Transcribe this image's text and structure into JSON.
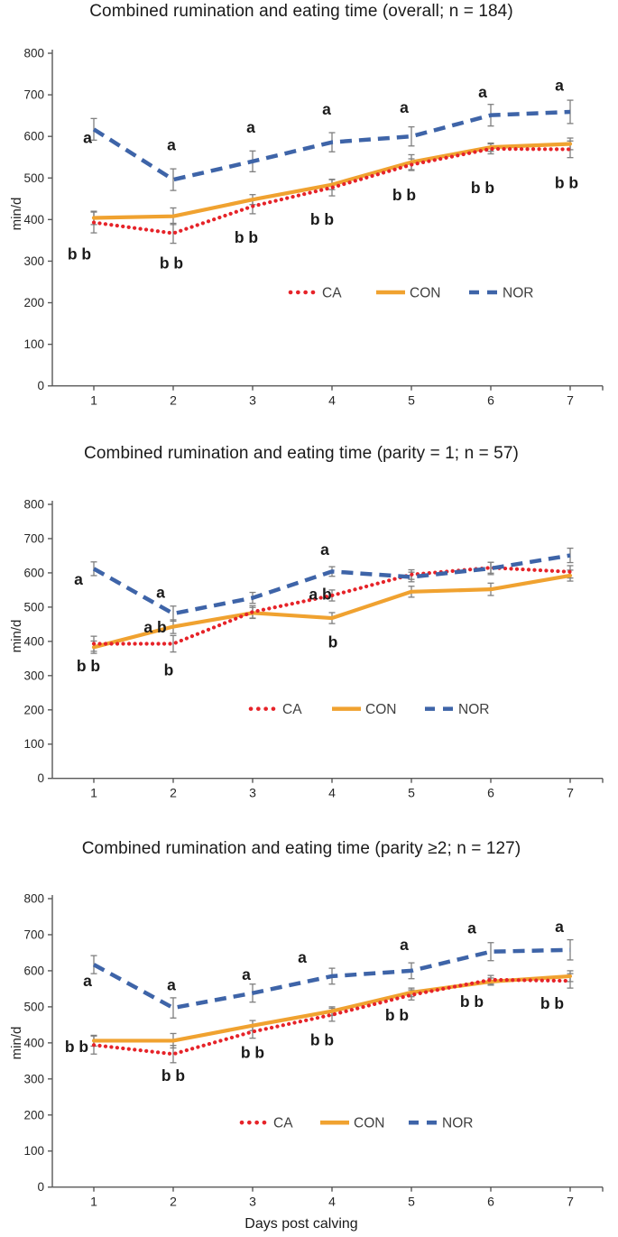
{
  "figure": {
    "xlabel": "Days post calving",
    "ylabel": "min/d",
    "legend_labels": [
      "CA",
      "CON",
      "NOR"
    ],
    "colors": {
      "ca": "#e62329",
      "con": "#f0a230",
      "nor": "#3e64a8",
      "error_bar": "#7f7f7f",
      "axis": "#595959",
      "tick_text": "#262626",
      "letter_text": "#1a1a1a",
      "legend_text": "#404040"
    }
  },
  "chart_data": [
    {
      "type": "line",
      "title": "Combined rumination and eating time (overall; n = 184)",
      "x": [
        1,
        2,
        3,
        4,
        5,
        6,
        7
      ],
      "xlabel": "",
      "ylabel": "min/d",
      "ylim": [
        0,
        800
      ],
      "yticks": [
        0,
        100,
        200,
        300,
        400,
        500,
        600,
        700,
        800
      ],
      "grid": false,
      "legend_position": "inside-center",
      "series": [
        {
          "name": "CA",
          "style": "dotted",
          "color": "#e62329",
          "values": [
            393,
            367,
            432,
            477,
            532,
            570,
            569
          ],
          "err": [
            25,
            24,
            18,
            20,
            14,
            12,
            20
          ]
        },
        {
          "name": "CON",
          "style": "solid",
          "color": "#f0a230",
          "values": [
            404,
            408,
            448,
            484,
            538,
            574,
            582
          ],
          "err": [
            16,
            20,
            12,
            12,
            18,
            10,
            14
          ]
        },
        {
          "name": "NOR",
          "style": "dashed",
          "color": "#3e64a8",
          "values": [
            617,
            496,
            540,
            586,
            600,
            651,
            659
          ],
          "err": [
            26,
            26,
            25,
            23,
            23,
            26,
            28
          ]
        }
      ],
      "annotations": [
        {
          "day": 1,
          "text": "a",
          "dx": -7,
          "value": 597
        },
        {
          "day": 2,
          "text": "a",
          "dx": -2,
          "value": 580
        },
        {
          "day": 3,
          "text": "a",
          "dx": -2,
          "value": 622
        },
        {
          "day": 4,
          "text": "a",
          "dx": -6,
          "value": 666
        },
        {
          "day": 5,
          "text": "a",
          "dx": -8,
          "value": 670
        },
        {
          "day": 6,
          "text": "a",
          "dx": -9,
          "value": 707
        },
        {
          "day": 7,
          "text": "a",
          "dx": -12,
          "value": 723
        },
        {
          "day": 1,
          "text": "b b",
          "dx": -16,
          "value": 317
        },
        {
          "day": 2,
          "text": "b b",
          "dx": -2,
          "value": 295
        },
        {
          "day": 3,
          "text": "b b",
          "dx": -7,
          "value": 357
        },
        {
          "day": 4,
          "text": "b b",
          "dx": -11,
          "value": 401
        },
        {
          "day": 5,
          "text": "b b",
          "dx": -8,
          "value": 459
        },
        {
          "day": 6,
          "text": "b b",
          "dx": -9,
          "value": 477
        },
        {
          "day": 7,
          "text": "b b",
          "dx": -4,
          "value": 489
        }
      ]
    },
    {
      "type": "line",
      "title": "Combined rumination and eating time (parity = 1; n = 57)",
      "x": [
        1,
        2,
        3,
        4,
        5,
        6,
        7
      ],
      "xlabel": "",
      "ylabel": "min/d",
      "ylim": [
        0,
        800
      ],
      "yticks": [
        0,
        100,
        200,
        300,
        400,
        500,
        600,
        700,
        800
      ],
      "grid": false,
      "legend_position": "inside-center",
      "series": [
        {
          "name": "CA",
          "style": "dotted",
          "color": "#e62329",
          "values": [
            393,
            393,
            486,
            534,
            595,
            615,
            603
          ],
          "err": [
            22,
            24,
            18,
            16,
            14,
            16,
            18
          ]
        },
        {
          "name": "CON",
          "style": "solid",
          "color": "#f0a230",
          "values": [
            383,
            443,
            483,
            468,
            545,
            552,
            592
          ],
          "err": [
            18,
            20,
            16,
            16,
            16,
            18,
            16
          ]
        },
        {
          "name": "NOR",
          "style": "dashed",
          "color": "#3e64a8",
          "values": [
            612,
            481,
            527,
            604,
            588,
            613,
            651
          ],
          "err": [
            20,
            22,
            16,
            14,
            14,
            18,
            21
          ]
        }
      ],
      "annotations": [
        {
          "day": 1,
          "text": "a",
          "dx": -17,
          "value": 582
        },
        {
          "day": 1,
          "text": "b b",
          "dx": -6,
          "value": 328
        },
        {
          "day": 2,
          "text": "a",
          "dx": -14,
          "value": 543
        },
        {
          "day": 2,
          "text": "a b",
          "dx": -20,
          "value": 442
        },
        {
          "day": 2,
          "text": "b",
          "dx": -5,
          "value": 316
        },
        {
          "day": 4,
          "text": "a",
          "dx": -8,
          "value": 668
        },
        {
          "day": 4,
          "text": "a b",
          "dx": -13,
          "value": 538
        },
        {
          "day": 4,
          "text": "b",
          "dx": 1,
          "value": 398
        }
      ]
    },
    {
      "type": "line",
      "title": "Combined rumination and eating time (parity ≥2; n = 127)",
      "x": [
        1,
        2,
        3,
        4,
        5,
        6,
        7
      ],
      "xlabel": "Days post calving",
      "ylabel": "min/d",
      "ylim": [
        0,
        800
      ],
      "yticks": [
        0,
        100,
        200,
        300,
        400,
        500,
        600,
        700,
        800
      ],
      "grid": false,
      "legend_position": "inside-center",
      "series": [
        {
          "name": "CA",
          "style": "dotted",
          "color": "#e62329",
          "values": [
            394,
            369,
            431,
            478,
            533,
            575,
            572
          ],
          "err": [
            25,
            24,
            18,
            18,
            14,
            12,
            20
          ]
        },
        {
          "name": "CON",
          "style": "solid",
          "color": "#f0a230",
          "values": [
            406,
            406,
            448,
            488,
            540,
            570,
            585
          ],
          "err": [
            15,
            20,
            14,
            12,
            12,
            10,
            15
          ]
        },
        {
          "name": "NOR",
          "style": "dashed",
          "color": "#3e64a8",
          "values": [
            617,
            497,
            538,
            585,
            600,
            653,
            658
          ],
          "err": [
            25,
            28,
            25,
            22,
            22,
            25,
            28
          ]
        }
      ],
      "annotations": [
        {
          "day": 1,
          "text": "a",
          "dx": -7,
          "value": 572
        },
        {
          "day": 2,
          "text": "a",
          "dx": -2,
          "value": 561
        },
        {
          "day": 3,
          "text": "a",
          "dx": -7,
          "value": 590
        },
        {
          "day": 4,
          "text": "a",
          "dx": -33,
          "value": 637
        },
        {
          "day": 5,
          "text": "a",
          "dx": -8,
          "value": 673
        },
        {
          "day": 6,
          "text": "a",
          "dx": -21,
          "value": 719
        },
        {
          "day": 7,
          "text": "a",
          "dx": -12,
          "value": 723
        },
        {
          "day": 1,
          "text": "b b",
          "dx": -19,
          "value": 390
        },
        {
          "day": 2,
          "text": "b b",
          "dx": 0,
          "value": 310
        },
        {
          "day": 3,
          "text": "b b",
          "dx": 0,
          "value": 373
        },
        {
          "day": 4,
          "text": "b b",
          "dx": -11,
          "value": 408
        },
        {
          "day": 5,
          "text": "b b",
          "dx": -16,
          "value": 477
        },
        {
          "day": 6,
          "text": "b b",
          "dx": -21,
          "value": 515
        },
        {
          "day": 7,
          "text": "b b",
          "dx": -20,
          "value": 510
        }
      ]
    }
  ]
}
